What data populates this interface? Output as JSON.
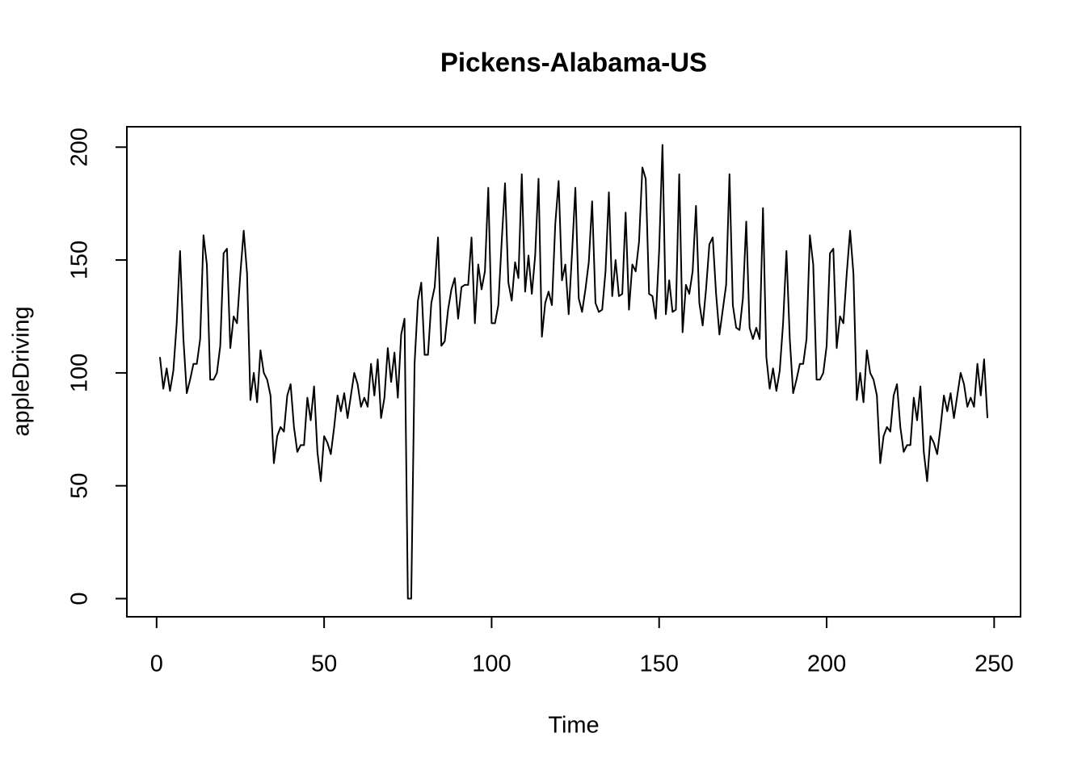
{
  "chart_data": {
    "type": "line",
    "title": "Pickens-Alabama-US",
    "x_label": "Time",
    "y_label": "appleDriving",
    "x": [
      1,
      2,
      3,
      4,
      5,
      6,
      7,
      8,
      9,
      10,
      11,
      12,
      13,
      14,
      15,
      16,
      17,
      18,
      19,
      20,
      21,
      22,
      23,
      24,
      25,
      26,
      27,
      28,
      29,
      30,
      31,
      32,
      33,
      34,
      35,
      36,
      37,
      38,
      39,
      40,
      41,
      42,
      43,
      44,
      45,
      46,
      47,
      48,
      49,
      50,
      51,
      52,
      53,
      54,
      55,
      56,
      57,
      58,
      59,
      60,
      61,
      62,
      63,
      64,
      65,
      66,
      67,
      68,
      69,
      70,
      71,
      72,
      73,
      74,
      75,
      76,
      77,
      78,
      79,
      80,
      81,
      82,
      83,
      84,
      85,
      86,
      87,
      88,
      89,
      90,
      91,
      92,
      93,
      94,
      95,
      96,
      97,
      98,
      99,
      100,
      101,
      102,
      103,
      104,
      105,
      106,
      107,
      108,
      109,
      110,
      111,
      112,
      113,
      114,
      115,
      116,
      117,
      118,
      119,
      120,
      121,
      122,
      123,
      124,
      125,
      126,
      127,
      128,
      129,
      130,
      131,
      132,
      133,
      134,
      135,
      136,
      137,
      138,
      139,
      140,
      141,
      142,
      143,
      144,
      145,
      146,
      147,
      148,
      149,
      150,
      151,
      152,
      153,
      154,
      155,
      156,
      157,
      158,
      159,
      160,
      161,
      162,
      163,
      164,
      165,
      166,
      167,
      168,
      169,
      170,
      171,
      172,
      173,
      174,
      175,
      176,
      177,
      178,
      179,
      180,
      181,
      182,
      183,
      184,
      185,
      186,
      187,
      188,
      189,
      190,
      191,
      192,
      193,
      194,
      195,
      196,
      197,
      198,
      199,
      200,
      201,
      202,
      203,
      204,
      205,
      206,
      207,
      208,
      209,
      210,
      211,
      212,
      213,
      214,
      215,
      216,
      217,
      218,
      219,
      220,
      221,
      222,
      223,
      224,
      225,
      226,
      227,
      228,
      229,
      230,
      231,
      232,
      233,
      234,
      235,
      236,
      237,
      238,
      239,
      240,
      241,
      242,
      243,
      244,
      245,
      246,
      247,
      248
    ],
    "series": [
      {
        "color": "#000000",
        "values": [
          107,
          93,
          102,
          92,
          101,
          122,
          154,
          115,
          91,
          97,
          104,
          104,
          115,
          161,
          148,
          97,
          97,
          100,
          112,
          153,
          155,
          111,
          125,
          122,
          144,
          163,
          144,
          88,
          100,
          87,
          110,
          100,
          97,
          90,
          60,
          72,
          76,
          74,
          90,
          95,
          76,
          65,
          68,
          68,
          89,
          79,
          94,
          65,
          52,
          72,
          69,
          64,
          76,
          90,
          83,
          91,
          80,
          90,
          100,
          95,
          85,
          89,
          85,
          104,
          90,
          106,
          80,
          89,
          111,
          96,
          109,
          89,
          117,
          124,
          0,
          0,
          104,
          132,
          140,
          108,
          108,
          131,
          138,
          160,
          112,
          114,
          128,
          137,
          142,
          124,
          138,
          139,
          139,
          160,
          122,
          148,
          137,
          145,
          182,
          122,
          122,
          130,
          158,
          184,
          140,
          132,
          149,
          142,
          188,
          136,
          152,
          135,
          152,
          186,
          116,
          131,
          136,
          130,
          166,
          185,
          141,
          148,
          126,
          153,
          182,
          133,
          127,
          137,
          149,
          176,
          131,
          127,
          128,
          145,
          180,
          134,
          150,
          134,
          135,
          171,
          128,
          148,
          145,
          158,
          191,
          186,
          135,
          134,
          124,
          154,
          201,
          126,
          141,
          127,
          128,
          188,
          118,
          139,
          135,
          145,
          174,
          131,
          121,
          137,
          157,
          160,
          135,
          117,
          128,
          139,
          188,
          130,
          120,
          119,
          133,
          167,
          120,
          115,
          120,
          115,
          173,
          107,
          93,
          102,
          92,
          101,
          122,
          154,
          115,
          91,
          97,
          104,
          104,
          115,
          161,
          148,
          97,
          97,
          100,
          112,
          153,
          155,
          111,
          125,
          122,
          144,
          163,
          144,
          88,
          100,
          87,
          110,
          100,
          97,
          90,
          60,
          72,
          76,
          74,
          90,
          95,
          76,
          65,
          68,
          68,
          89,
          79,
          94,
          65,
          52,
          72,
          69,
          64,
          76,
          90,
          83,
          91,
          80,
          90,
          100,
          95,
          85,
          89,
          85,
          104,
          90,
          106,
          80
        ]
      }
    ],
    "xlim": [
      -8.88,
      257.88
    ],
    "ylim": [
      -8.04,
      209.04
    ],
    "xticks": [
      0,
      50,
      100,
      150,
      200,
      250
    ],
    "yticks": [
      0,
      50,
      100,
      150,
      200
    ]
  }
}
